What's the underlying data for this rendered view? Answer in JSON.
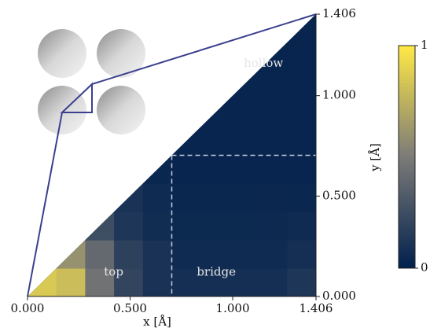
{
  "chart_data": {
    "type": "heatmap",
    "xlabel": "x [Å]",
    "ylabel": "y [Å]",
    "xlim": [
      0,
      1.406
    ],
    "ylim": [
      0,
      1.406
    ],
    "xticks": [
      {
        "value": 0,
        "label": "0.000"
      },
      {
        "value": 0.5,
        "label": "0.500"
      },
      {
        "value": 1,
        "label": "1.000"
      },
      {
        "value": 1.406,
        "label": "1.406"
      }
    ],
    "yticks": [
      {
        "value": 0,
        "label": "0.000"
      },
      {
        "value": 0.5,
        "label": "0.500"
      },
      {
        "value": 1,
        "label": "1.000"
      },
      {
        "value": 1.406,
        "label": "1.406"
      }
    ],
    "z": [
      [
        0.85,
        0.8,
        0.45,
        0.2,
        0.1,
        0.08,
        0.08,
        0.08,
        0.08,
        0.12
      ],
      [
        null,
        0.6,
        0.4,
        0.18,
        0.1,
        0.06,
        0.06,
        0.06,
        0.06,
        0.08
      ],
      [
        null,
        null,
        0.25,
        0.12,
        0.07,
        0.05,
        0.05,
        0.05,
        0.05,
        0.06
      ],
      [
        null,
        null,
        null,
        0.1,
        0.06,
        0.04,
        0.04,
        0.04,
        0.04,
        0.04
      ],
      [
        null,
        null,
        null,
        null,
        0.04,
        0.03,
        0.03,
        0.03,
        0.03,
        0.03
      ],
      [
        null,
        null,
        null,
        null,
        null,
        0.03,
        0.03,
        0.03,
        0.03,
        0.03
      ],
      [
        null,
        null,
        null,
        null,
        null,
        null,
        0.03,
        0.03,
        0.03,
        0.03
      ],
      [
        null,
        null,
        null,
        null,
        null,
        null,
        null,
        0.03,
        0.03,
        0.03
      ],
      [
        null,
        null,
        null,
        null,
        null,
        null,
        null,
        null,
        0.03,
        0.03
      ],
      [
        null,
        null,
        null,
        null,
        null,
        null,
        null,
        null,
        null,
        0.03
      ]
    ],
    "zlim": [
      0,
      1
    ],
    "zticks": [
      0,
      1
    ],
    "colormap": [
      "#00204c",
      "#7c7b78",
      "#ffe945"
    ],
    "dividers": [
      0.703
    ],
    "annotations": [
      {
        "text": "hollow",
        "x": 1.15,
        "y": 1.16
      },
      {
        "text": "top",
        "x": 0.42,
        "y": 0.12
      },
      {
        "text": "bridge",
        "x": 0.92,
        "y": 0.12
      }
    ]
  }
}
